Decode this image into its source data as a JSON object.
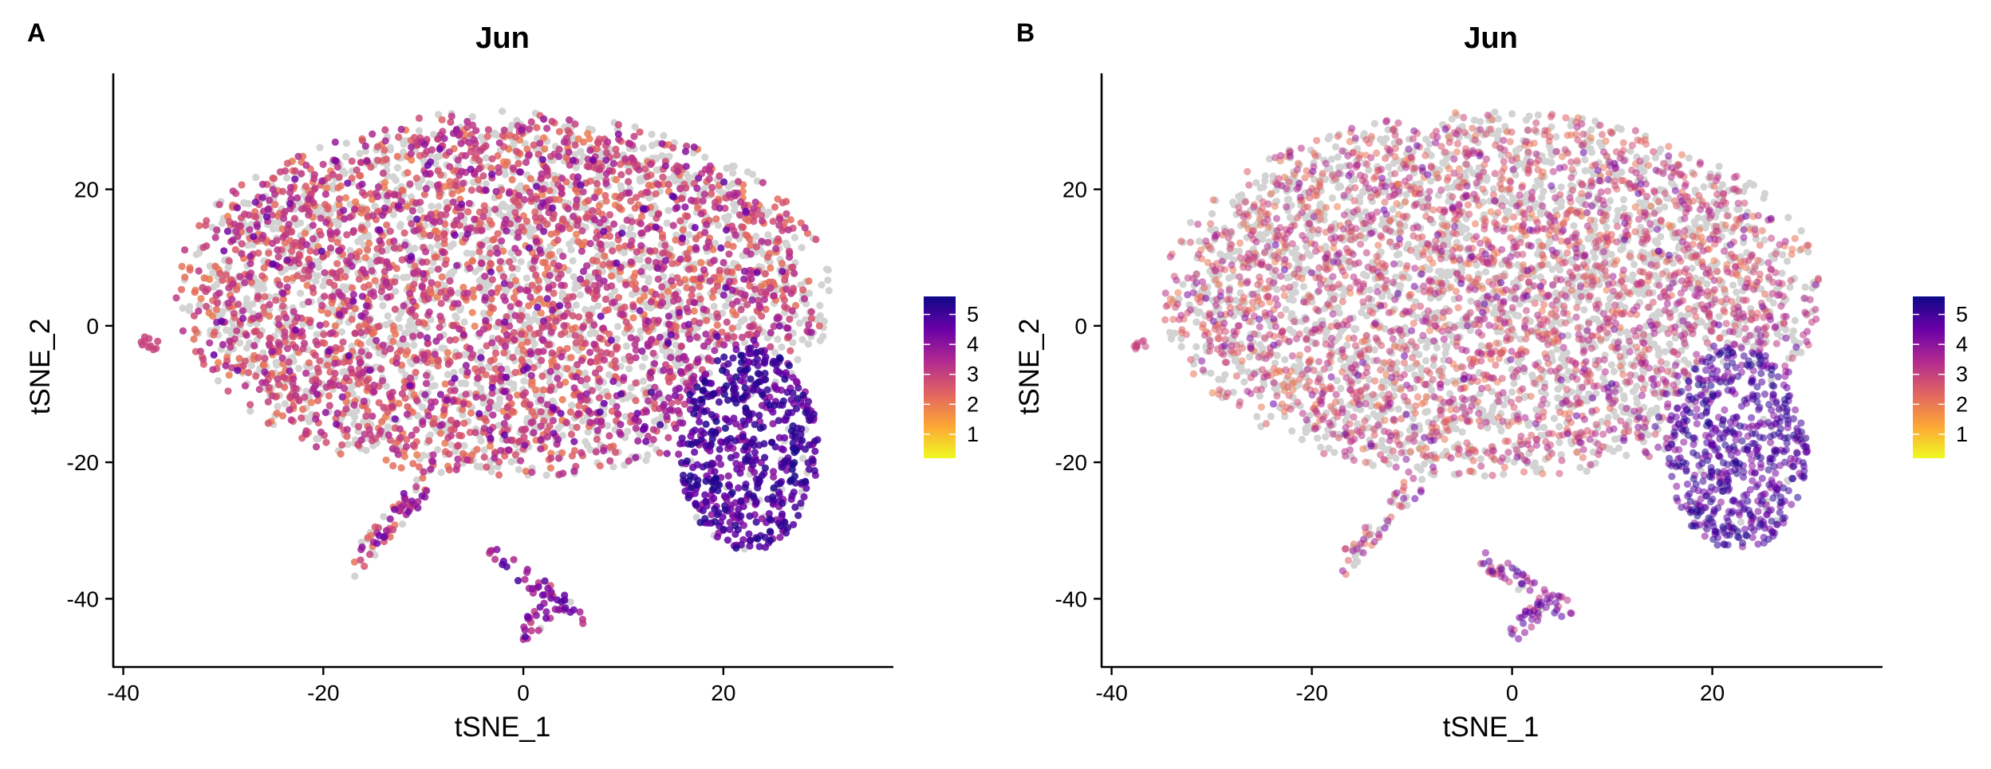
{
  "figure": {
    "background": "#ffffff"
  },
  "chart_data": [
    {
      "panel_label": "A",
      "type": "scatter",
      "title": "Jun",
      "xlabel": "tSNE_1",
      "ylabel": "tSNE_2",
      "xlim": [
        -41,
        37
      ],
      "ylim": [
        -50,
        37
      ],
      "xticks": [
        -40,
        -20,
        0,
        20
      ],
      "yticks": [
        -40,
        -20,
        0,
        20
      ],
      "grid": false,
      "point_alpha": 0.85,
      "colorbar": {
        "title": "",
        "ticks": [
          1,
          2,
          3,
          4,
          5
        ],
        "range": [
          0.2,
          5.6
        ],
        "palette": [
          "#f0f921",
          "#fca636",
          "#e16462",
          "#b12a90",
          "#6a00a8",
          "#0d0887"
        ],
        "placement": "right"
      },
      "background_color": "#d3d3d3",
      "clusters": [
        {
          "name": "main",
          "x": [
            -34,
            30
          ],
          "y": [
            -22,
            31
          ],
          "expr_mean": 2.6
        },
        {
          "name": "lower-right",
          "x": [
            16,
            29
          ],
          "y": [
            -33,
            -5
          ],
          "expr_mean": 4.8
        },
        {
          "name": "left-tail",
          "x": [
            -17,
            -8
          ],
          "y": [
            -35,
            -22
          ],
          "expr_mean": 2.8
        },
        {
          "name": "bottom-island",
          "x": [
            -3,
            6
          ],
          "y": [
            -46,
            -34
          ],
          "expr_mean": 3.6
        },
        {
          "name": "outlier",
          "x": [
            -38,
            -37
          ],
          "y": [
            -3,
            -2
          ],
          "expr_mean": 3.0
        }
      ]
    },
    {
      "panel_label": "B",
      "type": "scatter",
      "title": "Jun",
      "xlabel": "tSNE_1",
      "ylabel": "tSNE_2",
      "xlim": [
        -41,
        37
      ],
      "ylim": [
        -50,
        37
      ],
      "xticks": [
        -40,
        -20,
        0,
        20
      ],
      "yticks": [
        -40,
        -20,
        0,
        20
      ],
      "grid": false,
      "point_alpha": 0.55,
      "colorbar": {
        "title": "",
        "ticks": [
          1,
          2,
          3,
          4,
          5
        ],
        "range": [
          0.2,
          5.6
        ],
        "palette": [
          "#f0f921",
          "#fca636",
          "#e16462",
          "#b12a90",
          "#6a00a8",
          "#0d0887"
        ],
        "placement": "right"
      },
      "background_color": "#d3d3d3",
      "clusters": [
        {
          "name": "main",
          "x": [
            -34,
            30
          ],
          "y": [
            -22,
            31
          ],
          "expr_mean": 2.6
        },
        {
          "name": "lower-right",
          "x": [
            16,
            29
          ],
          "y": [
            -33,
            -5
          ],
          "expr_mean": 4.8
        },
        {
          "name": "left-tail",
          "x": [
            -17,
            -8
          ],
          "y": [
            -35,
            -22
          ],
          "expr_mean": 2.8
        },
        {
          "name": "bottom-island",
          "x": [
            -3,
            6
          ],
          "y": [
            -46,
            -34
          ],
          "expr_mean": 3.6
        },
        {
          "name": "outlier",
          "x": [
            -38,
            -37
          ],
          "y": [
            -3,
            -2
          ],
          "expr_mean": 3.0
        }
      ]
    }
  ]
}
